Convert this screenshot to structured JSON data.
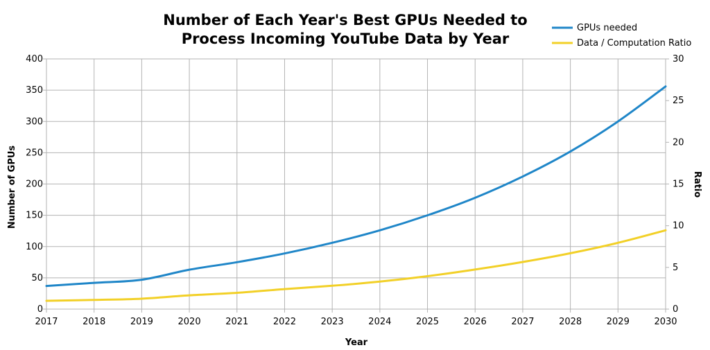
{
  "chart_data": {
    "type": "line",
    "title_lines": [
      "Number of Each Year's Best GPUs Needed to",
      "Process Incoming YouTube Data by Year"
    ],
    "xlabel": "Year",
    "ylabel": "Number of GPUs",
    "y2label": "Ratio",
    "x": [
      2017,
      2018,
      2019,
      2020,
      2021,
      2022,
      2023,
      2024,
      2025,
      2026,
      2027,
      2028,
      2029,
      2030
    ],
    "ylim": [
      0,
      400
    ],
    "y_ticks": [
      0,
      50,
      100,
      150,
      200,
      250,
      300,
      350,
      400
    ],
    "y2lim": [
      0,
      30
    ],
    "y2_ticks": [
      0,
      5,
      10,
      15,
      20,
      25,
      30
    ],
    "grid": true,
    "legend_position": "top-right",
    "series": [
      {
        "name": "GPUs needed",
        "axis": "left",
        "color": "#1f86c8",
        "values": [
          37,
          42,
          47,
          63,
          75,
          89,
          106,
          126,
          150,
          178,
          212,
          252,
          300,
          356
        ]
      },
      {
        "name": "Data / Computation Ratio",
        "axis": "right",
        "color": "#f2d027",
        "values": [
          1.0,
          1.1,
          1.25,
          1.65,
          1.95,
          2.4,
          2.8,
          3.3,
          3.95,
          4.75,
          5.65,
          6.7,
          7.95,
          9.45
        ]
      }
    ]
  }
}
